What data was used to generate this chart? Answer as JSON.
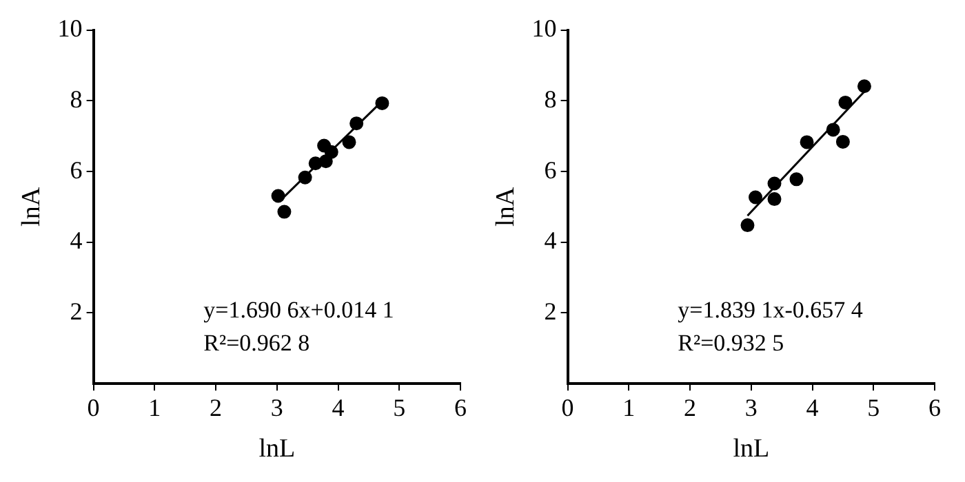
{
  "chart_data": [
    {
      "type": "scatter",
      "xlabel": "lnL",
      "ylabel": "lnA",
      "xlim": [
        0,
        6
      ],
      "ylim": [
        0,
        10
      ],
      "xticks": [
        0,
        1,
        2,
        3,
        4,
        5,
        6
      ],
      "yticks": [
        2,
        4,
        6,
        8,
        10
      ],
      "grid": false,
      "annotations": [
        "y=1.690 6x+0.014 1",
        "R²=0.962 8"
      ],
      "series": [
        {
          "marker": "circle",
          "color": "#000000",
          "x": [
            3.02,
            3.12,
            3.46,
            3.63,
            3.77,
            3.8,
            3.89,
            4.18,
            4.3,
            4.72
          ],
          "values": [
            5.31,
            4.86,
            5.83,
            6.23,
            6.73,
            6.29,
            6.55,
            6.83,
            7.36,
            7.93
          ]
        },
        {
          "type": "line",
          "marker": "none",
          "line_style": "solid",
          "color": "#000000",
          "x": [
            3.05,
            4.72
          ],
          "values": [
            5.17,
            7.99
          ]
        }
      ]
    },
    {
      "type": "scatter",
      "xlabel": "lnL",
      "ylabel": "lnA",
      "xlim": [
        0,
        6
      ],
      "ylim": [
        0,
        10
      ],
      "xticks": [
        0,
        1,
        2,
        3,
        4,
        5,
        6
      ],
      "yticks": [
        2,
        4,
        6,
        8,
        10
      ],
      "grid": false,
      "annotations": [
        "y=1.839 1x-0.657 4",
        "R²=0.932 5"
      ],
      "series": [
        {
          "marker": "circle",
          "color": "#000000",
          "x": [
            2.94,
            3.07,
            3.38,
            3.38,
            3.74,
            3.91,
            4.34,
            4.5,
            4.54,
            4.85
          ],
          "values": [
            4.48,
            5.27,
            5.66,
            5.22,
            5.78,
            6.83,
            7.18,
            6.84,
            7.95,
            8.41
          ]
        },
        {
          "type": "line",
          "marker": "none",
          "line_style": "solid",
          "color": "#000000",
          "x": [
            2.94,
            4.85
          ],
          "values": [
            4.75,
            8.26
          ]
        }
      ]
    }
  ]
}
